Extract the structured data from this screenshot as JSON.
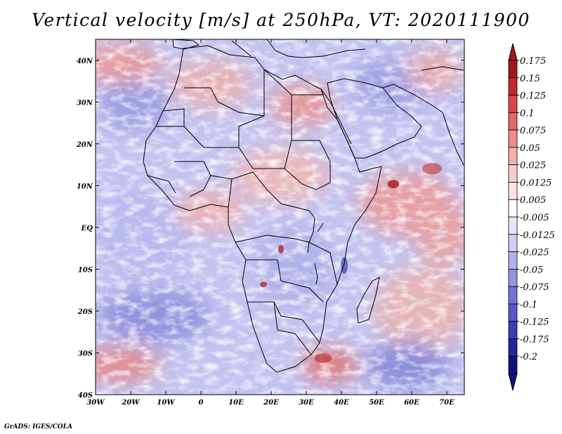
{
  "title": "Vertical velocity [m/s] at 250hPa, VT: 2020111900",
  "credit": "GrADS: IGES/COLA",
  "lat_labels": [
    "40N",
    "30N",
    "20N",
    "10N",
    "EQ",
    "10S",
    "20S",
    "30S",
    "40S"
  ],
  "lon_labels": [
    "30W",
    "20W",
    "10W",
    "0",
    "10E",
    "20E",
    "30E",
    "40E",
    "50E",
    "60E",
    "70E"
  ],
  "colorbar": {
    "labels": [
      "0.175",
      "0.15",
      "0.125",
      "0.1",
      "0.075",
      "0.05",
      "0.025",
      "0.0125",
      "0.005",
      "-0.005",
      "-0.0125",
      "-0.025",
      "-0.05",
      "-0.075",
      "-0.1",
      "-0.125",
      "-0.175",
      "-0.2"
    ],
    "colors": [
      "#a01818",
      "#c22a2a",
      "#d84848",
      "#e46868",
      "#ee8c8c",
      "#f5aeae",
      "#f9cccc",
      "#fce4e4",
      "#ffffff",
      "#e6e6f8",
      "#cfcff2",
      "#b3b3ea",
      "#9494e0",
      "#7474d4",
      "#5656c6",
      "#3c3cb4",
      "#2424a0",
      "#12127e"
    ]
  },
  "chart_data": {
    "type": "heatmap",
    "title": "Vertical velocity [m/s] at 250hPa, VT: 2020111900",
    "xlim": [
      -30,
      75
    ],
    "ylim": [
      -40,
      45
    ],
    "x_ticks": [
      -30,
      -20,
      -10,
      0,
      10,
      20,
      30,
      40,
      50,
      60,
      70
    ],
    "y_ticks": [
      40,
      30,
      20,
      10,
      0,
      -10,
      -20,
      -30,
      -40
    ],
    "levels": [
      -0.2,
      -0.175,
      -0.125,
      -0.1,
      -0.075,
      -0.05,
      -0.025,
      -0.0125,
      -0.005,
      0.005,
      0.0125,
      0.025,
      0.05,
      0.075,
      0.1,
      0.125,
      0.15,
      0.175
    ]
  }
}
